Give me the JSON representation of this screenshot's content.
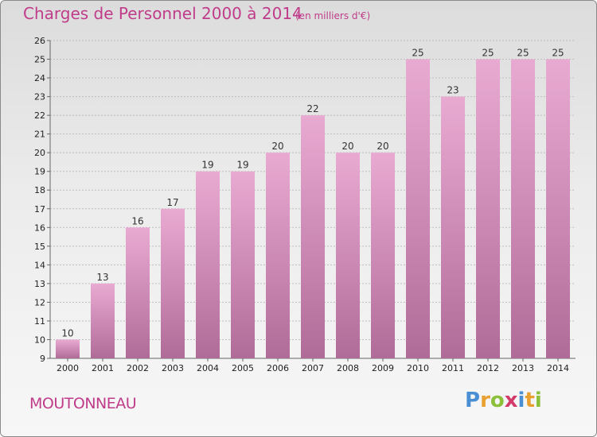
{
  "header": {
    "title": "Charges de Personnel 2000 à 2014",
    "subtitle": "(en milliers d'€)"
  },
  "footer": {
    "town": "MOUTONNEAU",
    "logo_letters": [
      {
        "char": "P",
        "color": "#4a8fd4"
      },
      {
        "char": "r",
        "color": "#e8a030"
      },
      {
        "char": "o",
        "color": "#8cbf3a"
      },
      {
        "char": "x",
        "color": "#d23a6a"
      },
      {
        "char": "i",
        "color": "#4a8fd4"
      },
      {
        "char": "t",
        "color": "#e8a030"
      },
      {
        "char": "i",
        "color": "#8cbf3a"
      }
    ]
  },
  "colors": {
    "bar_top": "#e9aad2",
    "bar_bottom": "#b06c98",
    "accent": "#c03c8a"
  },
  "chart_data": {
    "type": "bar",
    "title": "Charges de Personnel 2000 à 2014",
    "subtitle": "(en milliers d'€)",
    "categories": [
      "2000",
      "2001",
      "2002",
      "2003",
      "2004",
      "2005",
      "2006",
      "2007",
      "2008",
      "2009",
      "2010",
      "2011",
      "2012",
      "2013",
      "2014"
    ],
    "values": [
      10,
      13,
      16,
      17,
      19,
      19,
      20,
      22,
      20,
      20,
      25,
      23,
      25,
      25,
      25
    ],
    "ylim": [
      9,
      26
    ],
    "yticks": [
      9,
      10,
      11,
      12,
      13,
      14,
      15,
      16,
      17,
      18,
      19,
      20,
      21,
      22,
      23,
      24,
      25,
      26
    ],
    "grid": true,
    "legend": "none"
  }
}
